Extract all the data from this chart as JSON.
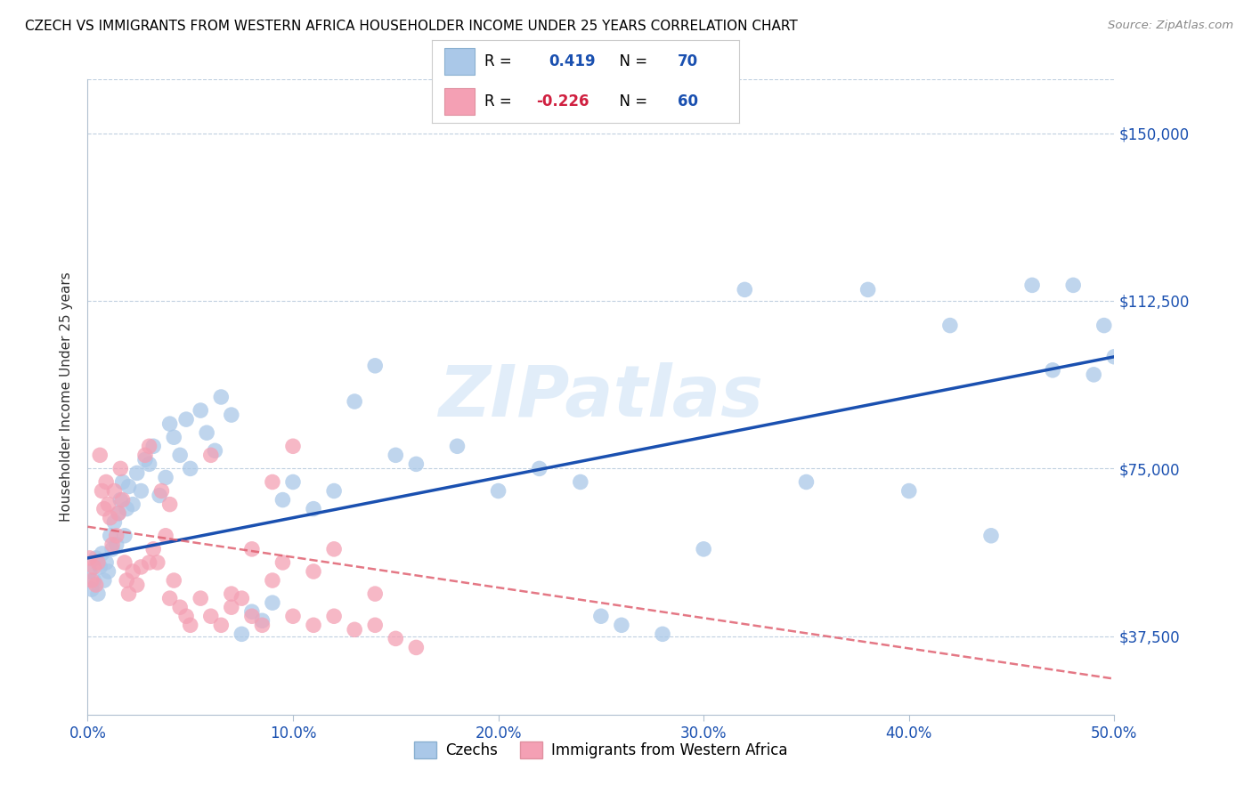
{
  "title": "CZECH VS IMMIGRANTS FROM WESTERN AFRICA HOUSEHOLDER INCOME UNDER 25 YEARS CORRELATION CHART",
  "source": "Source: ZipAtlas.com",
  "ylabel": "Householder Income Under 25 years",
  "xlabel_ticks": [
    "0.0%",
    "10.0%",
    "20.0%",
    "30.0%",
    "40.0%",
    "50.0%"
  ],
  "xlabel_vals": [
    0.0,
    0.1,
    0.2,
    0.3,
    0.4,
    0.5
  ],
  "ylabel_ticks": [
    "$37,500",
    "$75,000",
    "$112,500",
    "$150,000"
  ],
  "ylabel_vals": [
    37500,
    75000,
    112500,
    150000
  ],
  "xlim": [
    0.0,
    0.5
  ],
  "ylim": [
    20000,
    162000
  ],
  "legend_label1": "R =  0.419   N = 70",
  "legend_label2": "R = -0.226   N = 60",
  "legend_bottom_label1": "Czechs",
  "legend_bottom_label2": "Immigrants from Western Africa",
  "color_blue": "#aac8e8",
  "color_pink": "#f4a0b4",
  "line_blue": "#1a50b0",
  "line_pink": "#e06070",
  "watermark": "ZIPatlas",
  "blue_line_x0": 0.0,
  "blue_line_x1": 0.5,
  "blue_line_y0": 55000,
  "blue_line_y1": 100000,
  "pink_line_x0": 0.0,
  "pink_line_x1": 0.5,
  "pink_line_y0": 62000,
  "pink_line_y1": 28000,
  "blue_points_x": [
    0.001,
    0.002,
    0.003,
    0.004,
    0.005,
    0.006,
    0.007,
    0.008,
    0.009,
    0.01,
    0.011,
    0.012,
    0.013,
    0.014,
    0.015,
    0.016,
    0.017,
    0.018,
    0.019,
    0.02,
    0.022,
    0.024,
    0.026,
    0.028,
    0.03,
    0.032,
    0.035,
    0.038,
    0.04,
    0.042,
    0.045,
    0.048,
    0.05,
    0.055,
    0.058,
    0.062,
    0.065,
    0.07,
    0.075,
    0.08,
    0.085,
    0.09,
    0.095,
    0.1,
    0.11,
    0.12,
    0.13,
    0.14,
    0.15,
    0.16,
    0.18,
    0.2,
    0.22,
    0.24,
    0.25,
    0.26,
    0.28,
    0.3,
    0.32,
    0.35,
    0.38,
    0.4,
    0.42,
    0.44,
    0.46,
    0.47,
    0.48,
    0.49,
    0.495,
    0.5
  ],
  "blue_points_y": [
    52000,
    48000,
    50000,
    55000,
    47000,
    53000,
    56000,
    50000,
    54000,
    52000,
    60000,
    57000,
    63000,
    58000,
    65000,
    68000,
    72000,
    60000,
    66000,
    71000,
    67000,
    74000,
    70000,
    77000,
    76000,
    80000,
    69000,
    73000,
    85000,
    82000,
    78000,
    86000,
    75000,
    88000,
    83000,
    79000,
    91000,
    87000,
    38000,
    43000,
    41000,
    45000,
    68000,
    72000,
    66000,
    70000,
    90000,
    98000,
    78000,
    76000,
    80000,
    70000,
    75000,
    72000,
    42000,
    40000,
    38000,
    57000,
    115000,
    72000,
    115000,
    70000,
    107000,
    60000,
    116000,
    97000,
    116000,
    96000,
    107000,
    100000
  ],
  "pink_points_x": [
    0.001,
    0.002,
    0.003,
    0.004,
    0.005,
    0.006,
    0.007,
    0.008,
    0.009,
    0.01,
    0.011,
    0.012,
    0.013,
    0.014,
    0.015,
    0.016,
    0.017,
    0.018,
    0.019,
    0.02,
    0.022,
    0.024,
    0.026,
    0.028,
    0.03,
    0.032,
    0.034,
    0.036,
    0.038,
    0.04,
    0.042,
    0.045,
    0.048,
    0.05,
    0.055,
    0.06,
    0.065,
    0.07,
    0.075,
    0.08,
    0.085,
    0.09,
    0.095,
    0.1,
    0.11,
    0.12,
    0.13,
    0.14,
    0.15,
    0.16,
    0.06,
    0.08,
    0.1,
    0.12,
    0.14,
    0.07,
    0.09,
    0.11,
    0.03,
    0.04
  ],
  "pink_points_y": [
    55000,
    50000,
    53000,
    49000,
    54000,
    78000,
    70000,
    66000,
    72000,
    67000,
    64000,
    58000,
    70000,
    60000,
    65000,
    75000,
    68000,
    54000,
    50000,
    47000,
    52000,
    49000,
    53000,
    78000,
    80000,
    57000,
    54000,
    70000,
    60000,
    46000,
    50000,
    44000,
    42000,
    40000,
    46000,
    42000,
    40000,
    44000,
    46000,
    42000,
    40000,
    50000,
    54000,
    42000,
    40000,
    42000,
    39000,
    40000,
    37000,
    35000,
    78000,
    57000,
    80000,
    57000,
    47000,
    47000,
    72000,
    52000,
    54000,
    67000
  ]
}
